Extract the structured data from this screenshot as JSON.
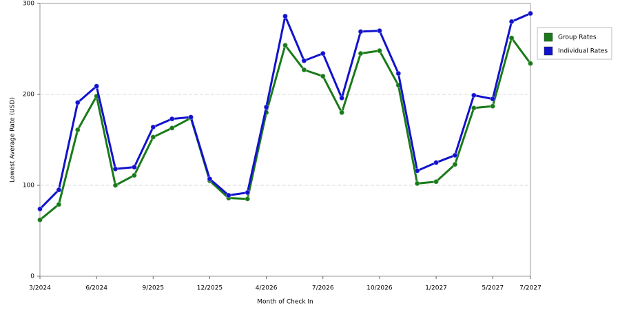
{
  "chart_data": {
    "type": "line",
    "x_label": "Month of Check In",
    "y_label": "Lowest Average Rate (USD)",
    "categories": [
      "3/2024",
      null,
      null,
      "6/2024",
      null,
      null,
      "9/2025",
      null,
      null,
      "12/2025",
      null,
      null,
      "4/2026",
      null,
      null,
      "7/2026",
      null,
      null,
      "10/2026",
      null,
      null,
      "1/2027",
      null,
      null,
      "5/2027",
      null,
      "7/2027"
    ],
    "series": [
      {
        "name": "Group Rates",
        "color": "#1a7a1a",
        "values": [
          62,
          79,
          161,
          198,
          100,
          111,
          153,
          163,
          174,
          105,
          86,
          85,
          180,
          254,
          227,
          220,
          180,
          245,
          248,
          210,
          102,
          104,
          123,
          185,
          187,
          262,
          234
        ]
      },
      {
        "name": "Individual Rates",
        "color": "#1212cc",
        "values": [
          74,
          95,
          191,
          209,
          118,
          120,
          164,
          173,
          175,
          107,
          89,
          92,
          186,
          286,
          237,
          245,
          196,
          269,
          270,
          223,
          116,
          125,
          133,
          199,
          195,
          280,
          289
        ]
      }
    ],
    "ylim": [
      0,
      300
    ],
    "yticks": [
      0,
      100,
      200,
      300
    ],
    "grid": true,
    "legend": "right"
  }
}
